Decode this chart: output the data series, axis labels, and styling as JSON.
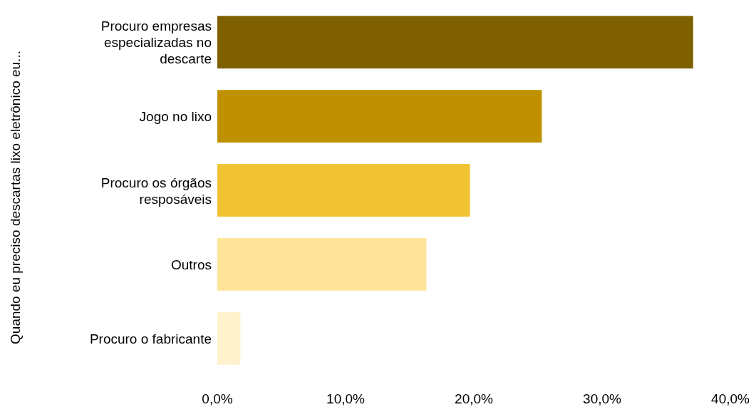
{
  "chart_data": {
    "type": "bar",
    "orientation": "horizontal",
    "ylabel": "Quando eu preciso descartas lixo eletrônico eu...",
    "categories": [
      "Procuro empresas especializadas no descarte",
      "Jogo no lixo",
      "Procuro os órgãos resposáveis",
      "Outros",
      "Procuro o fabricante"
    ],
    "values": [
      37.1,
      25.3,
      19.7,
      16.3,
      1.8
    ],
    "colors": [
      "#7f6000",
      "#bf9000",
      "#f1c232",
      "#ffe599",
      "#fff2cc"
    ],
    "xlim": [
      0,
      40
    ],
    "xticks": [
      {
        "value": 0,
        "label": "0,0%"
      },
      {
        "value": 10,
        "label": "10,0%"
      },
      {
        "value": 20,
        "label": "20,0%"
      },
      {
        "value": 30,
        "label": "30,0%"
      },
      {
        "value": 40,
        "label": "40,0%"
      }
    ],
    "grid": false
  }
}
